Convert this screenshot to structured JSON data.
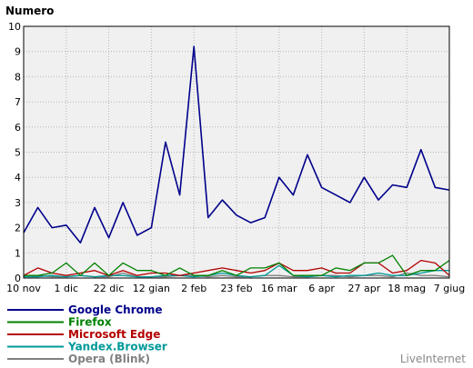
{
  "chart_data": {
    "type": "line",
    "title": "",
    "ylabel": "Numero",
    "xlabel": "",
    "ylim": [
      0,
      10
    ],
    "yticks": [
      0,
      1,
      2,
      3,
      4,
      5,
      6,
      7,
      8,
      9,
      10
    ],
    "grid": true,
    "legend_position": "bottom-left",
    "x_tick_labels": [
      "10 nov",
      "1 dic",
      "22 dic",
      "12 gian",
      "2 feb",
      "23 feb",
      "16 mar",
      "6 apr",
      "27 apr",
      "18 mag",
      "7 giug"
    ],
    "x_tick_indices": [
      0,
      3,
      6,
      9,
      12,
      15,
      18,
      21,
      24,
      27,
      30
    ],
    "series": [
      {
        "name": "Google Chrome",
        "color": "#00008b",
        "values": [
          1.8,
          2.8,
          2.0,
          2.1,
          1.4,
          2.8,
          1.6,
          3.0,
          1.7,
          2.0,
          5.4,
          3.3,
          9.2,
          2.4,
          3.1,
          2.5,
          2.2,
          2.4,
          4.0,
          3.3,
          4.9,
          3.6,
          3.3,
          3.0,
          4.0,
          3.1,
          3.7,
          3.6,
          5.1,
          3.6,
          3.5
        ]
      },
      {
        "name": "Firefox",
        "color": "#008000",
        "values": [
          0.1,
          0.1,
          0.2,
          0.6,
          0.1,
          0.6,
          0.1,
          0.6,
          0.3,
          0.3,
          0.1,
          0.4,
          0.1,
          0.1,
          0.3,
          0.1,
          0.4,
          0.4,
          0.6,
          0.1,
          0.1,
          0.1,
          0.4,
          0.3,
          0.6,
          0.6,
          0.9,
          0.1,
          0.3,
          0.3,
          0.7
        ]
      },
      {
        "name": "Microsoft Edge",
        "color": "#b40000",
        "values": [
          0.1,
          0.4,
          0.2,
          0.1,
          0.2,
          0.3,
          0.1,
          0.3,
          0.1,
          0.2,
          0.2,
          0.1,
          0.2,
          0.3,
          0.4,
          0.3,
          0.2,
          0.3,
          0.6,
          0.3,
          0.3,
          0.4,
          0.2,
          0.2,
          0.6,
          0.6,
          0.2,
          0.3,
          0.7,
          0.6,
          0.1
        ]
      },
      {
        "name": "Yandex.Browser",
        "color": "#009999",
        "values": [
          0.05,
          0.05,
          0.1,
          0.05,
          0.1,
          0.05,
          0.1,
          0.1,
          0.05,
          0.05,
          0.1,
          0.1,
          0.05,
          0.1,
          0.2,
          0.1,
          0.05,
          0.1,
          0.5,
          0.1,
          0.05,
          0.1,
          0.05,
          0.1,
          0.1,
          0.2,
          0.1,
          0.1,
          0.2,
          0.3,
          0.3
        ]
      },
      {
        "name": "Opera (Blink)",
        "color": "#808080",
        "values": [
          0.05,
          0.1,
          0.05,
          0.05,
          0.1,
          0.05,
          0.05,
          0.2,
          0.05,
          0.05,
          0.05,
          0.1,
          0.1,
          0.05,
          0.1,
          0.05,
          0.05,
          0.1,
          0.1,
          0.05,
          0.05,
          0.1,
          0.1,
          0.05,
          0.1,
          0.1,
          0.05,
          0.2,
          0.1,
          0.1,
          0.05
        ]
      }
    ]
  },
  "watermark": "LiveInternet"
}
